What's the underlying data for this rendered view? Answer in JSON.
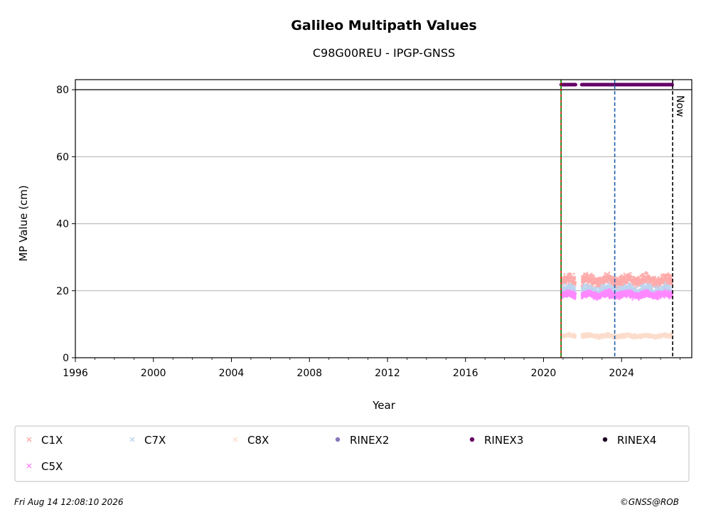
{
  "chart_data": {
    "type": "scatter",
    "title": "Galileo Multipath Values",
    "subtitle": "C98G00REU - IPGP-GNSS",
    "xlabel": "Year",
    "ylabel": "MP Value (cm)",
    "xlim": [
      1996,
      2027.6
    ],
    "ylim": [
      0,
      83
    ],
    "x_ticks": [
      1996,
      2000,
      2004,
      2008,
      2012,
      2016,
      2020,
      2024
    ],
    "y_ticks": [
      0,
      20,
      40,
      60,
      80
    ],
    "grid": "horizontal",
    "series": [
      {
        "name": "C1X",
        "color": "#ffaaaa",
        "marker": "x",
        "x_start": 2020.9,
        "x_end": 2026.6,
        "mean": 23,
        "spread": 1.6,
        "gap": [
          2021.65,
          2021.95
        ]
      },
      {
        "name": "C7X",
        "color": "#bcd4ee",
        "marker": "x",
        "x_start": 2020.9,
        "x_end": 2026.6,
        "mean": 20,
        "spread": 1.5,
        "gap": [
          2021.65,
          2021.95
        ]
      },
      {
        "name": "C8X",
        "color": "#fcdccc",
        "marker": "x",
        "x_start": 2020.9,
        "x_end": 2026.6,
        "mean": 6.5,
        "spread": 0.6,
        "gap": [
          2021.65,
          2021.95
        ]
      },
      {
        "name": "C5X",
        "color": "#ff88ff",
        "marker": "x",
        "x_start": 2020.9,
        "x_end": 2026.6,
        "mean": 18.8,
        "spread": 1.0,
        "gap": [
          2021.65,
          2021.95
        ]
      },
      {
        "name": "RINEX2",
        "color": "#8877bb",
        "marker": "dot"
      },
      {
        "name": "RINEX3",
        "color": "#660066",
        "marker": "dot",
        "x_start": 2020.9,
        "x_end": 2026.6,
        "value": 81.5,
        "gap": [
          2021.65,
          2021.95
        ]
      },
      {
        "name": "RINEX4",
        "color": "#1a0022",
        "marker": "dot"
      }
    ],
    "reference_lines": [
      {
        "axis": "y",
        "value": 80,
        "color": "#000000",
        "style": "solid"
      },
      {
        "axis": "x",
        "value": 2020.9,
        "color": "#cc0000",
        "style": "solid"
      },
      {
        "axis": "x",
        "value": 2020.9,
        "color": "#008800",
        "style": "dashed"
      },
      {
        "axis": "x",
        "value": 2023.65,
        "color": "#1f5fa8",
        "style": "dashed"
      },
      {
        "axis": "x",
        "value": 2026.62,
        "color": "#000000",
        "style": "dashed",
        "label": "Now"
      }
    ]
  },
  "legend": {
    "items": [
      {
        "label": "C1X",
        "color": "#ffaaaa",
        "marker": "x"
      },
      {
        "label": "C7X",
        "color": "#bcd4ee",
        "marker": "x"
      },
      {
        "label": "C8X",
        "color": "#fcdccc",
        "marker": "x"
      },
      {
        "label": "RINEX2",
        "color": "#8877bb",
        "marker": "dot"
      },
      {
        "label": "RINEX3",
        "color": "#660066",
        "marker": "dot"
      },
      {
        "label": "RINEX4",
        "color": "#1a0022",
        "marker": "dot"
      },
      {
        "label": "C5X",
        "color": "#ff88ff",
        "marker": "x"
      }
    ]
  },
  "footer": {
    "timestamp": "Fri Aug 14 12:08:10 2026",
    "copyright": "©GNSS@ROB"
  }
}
